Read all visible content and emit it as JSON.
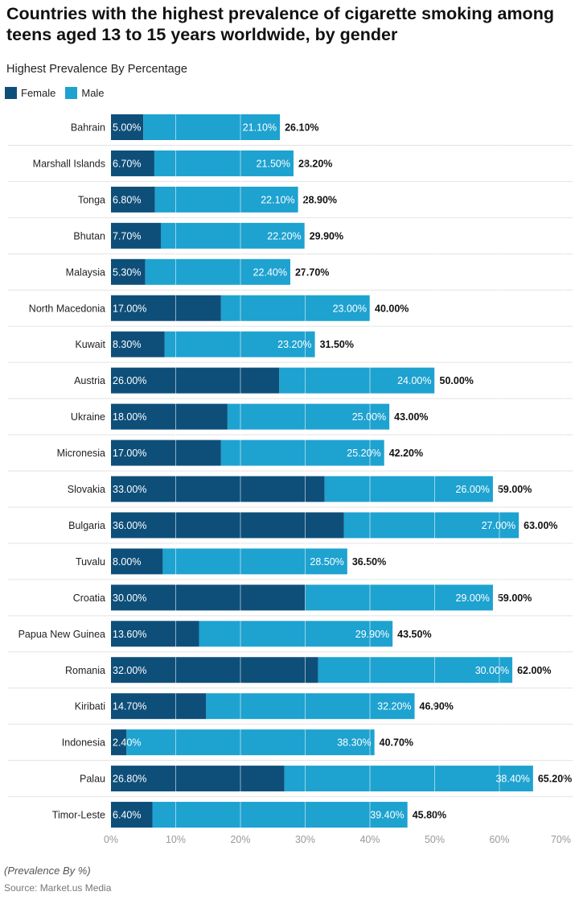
{
  "chart_data": {
    "type": "bar",
    "stacked": true,
    "orientation": "horizontal",
    "title": "Countries with the highest prevalence of cigarette smoking among teens aged 13 to 15 years worldwide, by gender",
    "subtitle": "Highest Prevalence By Percentage",
    "note": "(Prevalence By %)",
    "source": "Source: Market.us Media",
    "legend_position": "top-left",
    "xlim": [
      0,
      70
    ],
    "x_ticks": [
      "0%",
      "10%",
      "20%",
      "30%",
      "40%",
      "50%",
      "60%",
      "70%"
    ],
    "categories": [
      "Bahrain",
      "Marshall Islands",
      "Tonga",
      "Bhutan",
      "Malaysia",
      "North Macedonia",
      "Kuwait",
      "Austria",
      "Ukraine",
      "Micronesia",
      "Slovakia",
      "Bulgaria",
      "Tuvalu",
      "Croatia",
      "Papua New Guinea",
      "Romania",
      "Kiribati",
      "Indonesia",
      "Palau",
      "Timor-Leste"
    ],
    "series": [
      {
        "name": "Female",
        "color": "#0e4f7a",
        "values": [
          5.0,
          6.7,
          6.8,
          7.7,
          5.3,
          17.0,
          8.3,
          26.0,
          18.0,
          17.0,
          33.0,
          36.0,
          8.0,
          30.0,
          13.6,
          32.0,
          14.7,
          2.4,
          26.8,
          6.4
        ]
      },
      {
        "name": "Male",
        "color": "#1ea2d0",
        "values": [
          21.1,
          21.5,
          22.1,
          22.2,
          22.4,
          23.0,
          23.2,
          24.0,
          25.0,
          25.2,
          26.0,
          27.0,
          28.5,
          29.0,
          29.9,
          30.0,
          32.2,
          38.3,
          38.4,
          39.4
        ]
      }
    ],
    "totals": [
      26.1,
      28.2,
      28.9,
      29.9,
      27.7,
      40.0,
      31.5,
      50.0,
      43.0,
      42.2,
      59.0,
      63.0,
      36.5,
      59.0,
      43.5,
      62.0,
      46.9,
      40.7,
      65.2,
      45.8
    ]
  }
}
